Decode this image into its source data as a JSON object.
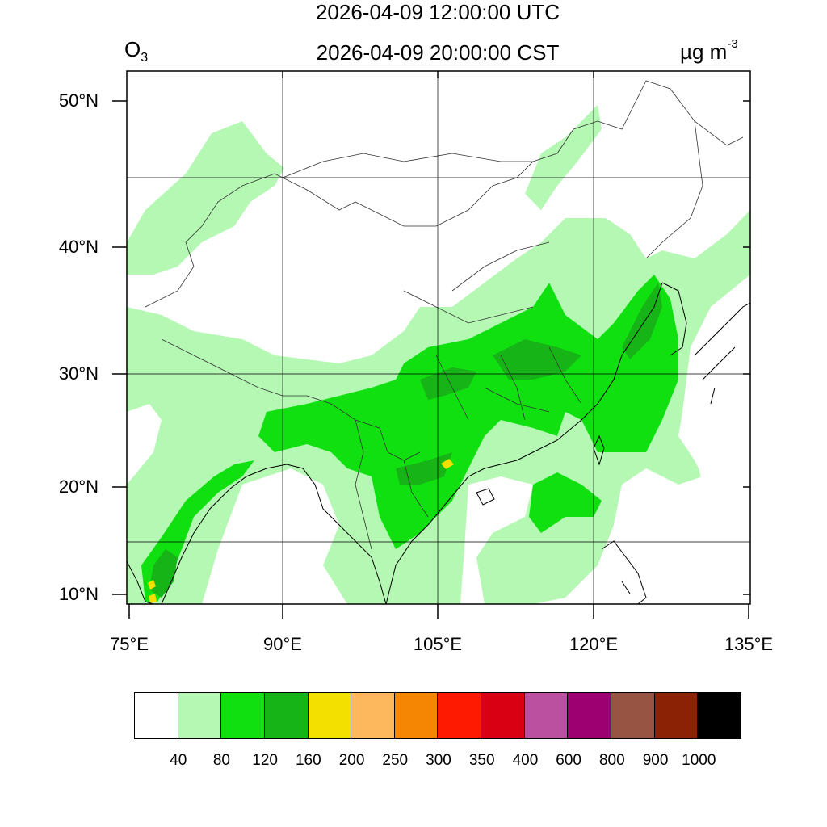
{
  "header": {
    "variable_main": "O",
    "variable_sub": "3",
    "time_utc": "2026-04-09 12:00:00 UTC",
    "time_local": "2026-04-09 20:00:00 CST",
    "units_main": "µg m",
    "units_sup": "-3"
  },
  "axes": {
    "lat_labels": [
      "50°N",
      "40°N",
      "30°N",
      "20°N",
      "10°N"
    ],
    "lon_labels": [
      "75°E",
      "90°E",
      "105°E",
      "120°E",
      "135°E"
    ]
  },
  "colors": {
    "c0": "#ffffff",
    "c40": "#b4f8b4",
    "c80": "#10e010",
    "c120": "#16b416",
    "c160": "#f4e000",
    "coast": "#000000",
    "border": "#333333",
    "grid": "#000000"
  },
  "colorbar": {
    "colors": [
      "#ffffff",
      "#b4f8b4",
      "#10e010",
      "#16b416",
      "#f4e000",
      "#fdb75c",
      "#f58604",
      "#fd1a00",
      "#d90014",
      "#bb4fa0",
      "#9d0070",
      "#985443",
      "#8c2205",
      "#000000"
    ],
    "ticks": [
      "40",
      "80",
      "120",
      "160",
      "200",
      "250",
      "300",
      "350",
      "400",
      "600",
      "800",
      "900",
      "1000"
    ]
  }
}
